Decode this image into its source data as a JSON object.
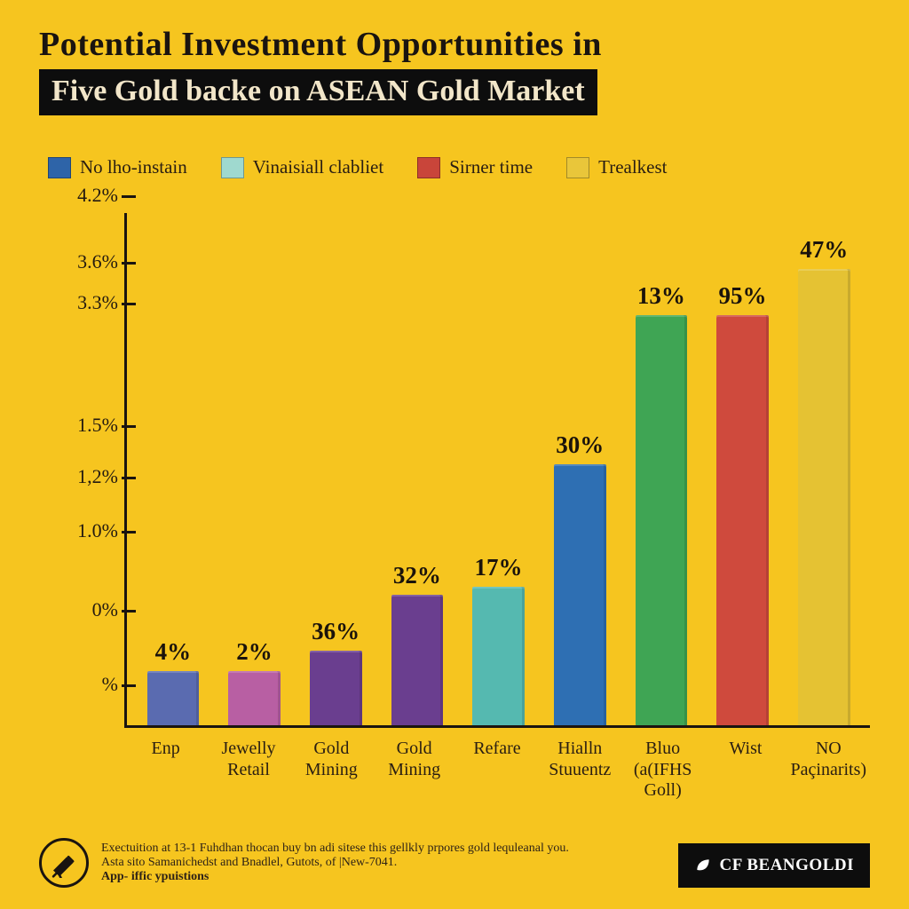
{
  "background_color": "#f6c51f",
  "title": {
    "line1": "Potential Investment Opportunities in",
    "line1_fontsize": 38,
    "line1_color": "#1a1410",
    "line2": "Five Gold backe on ASEAN Gold Market",
    "line2_fontsize": 34,
    "line2_color": "#f2e6c9",
    "line2_bg": "#0d0d0d"
  },
  "legend": {
    "fontsize": 21,
    "items": [
      {
        "label": "No lho-instain",
        "color": "#2e64a8"
      },
      {
        "label": "Vinaisiall clabliet",
        "color": "#9fd9cf"
      },
      {
        "label": "Sirner time",
        "color": "#c9453a"
      },
      {
        "label": "Trealkest",
        "color": "#e9c63a"
      }
    ]
  },
  "chart": {
    "type": "bar",
    "ylabel_fontsize": 22,
    "xlabel_fontsize": 20,
    "barlabel_fontsize": 27,
    "axis_color": "#1a1410",
    "yticks": [
      {
        "label": "4.2%",
        "pos": 0.99
      },
      {
        "label": "3.6%",
        "pos": 0.86
      },
      {
        "label": "3.3%",
        "pos": 0.78
      },
      {
        "label": "1.5%",
        "pos": 0.54
      },
      {
        "label": "1,2%",
        "pos": 0.44
      },
      {
        "label": "1.0%",
        "pos": 0.335
      },
      {
        "label": "0%",
        "pos": 0.18
      },
      {
        "label": "%",
        "pos": 0.035
      }
    ],
    "bars": [
      {
        "x": "Enp",
        "value_label": "4%",
        "height": 0.105,
        "color": "#5a6bb0"
      },
      {
        "x": "Jewelly\nRetail",
        "value_label": "2%",
        "height": 0.105,
        "color": "#b85fa3"
      },
      {
        "x": "Gold\nMining",
        "value_label": "36%",
        "height": 0.145,
        "color": "#6a3e8f"
      },
      {
        "x": "Gold\nMining",
        "value_label": "32%",
        "height": 0.255,
        "color": "#6a3e8f"
      },
      {
        "x": "Refare",
        "value_label": "17%",
        "height": 0.27,
        "color": "#55b9b0"
      },
      {
        "x": "Hialln\nStuuentz",
        "value_label": "30%",
        "height": 0.51,
        "color": "#2e6fb3"
      },
      {
        "x": "Bluo\n(a(IFHS Goll)",
        "value_label": "13%",
        "height": 0.8,
        "color": "#3fa554"
      },
      {
        "x": "Wist",
        "value_label": "95%",
        "height": 0.8,
        "color": "#cf4a3d"
      },
      {
        "x": "NO\nPaçinarits)",
        "value_label": "47%",
        "height": 0.89,
        "color": "#e5c233"
      }
    ]
  },
  "footer": {
    "text_fontsize": 14,
    "line1": "Exectuition at 13-1 Fuhdhan thocan buy bn adi sitese this gellkly prpores gold lequleanal you.",
    "line2": "Asta sito Samanichedst and Bnadlel, Gutots, of |New-7041.",
    "line3_bold": "App- iffic ypuistions",
    "brand": "CF BEANGOLDI",
    "brand_fontsize": 19,
    "brand_bg": "#0d0d0d",
    "brand_color": "#ffffff"
  }
}
